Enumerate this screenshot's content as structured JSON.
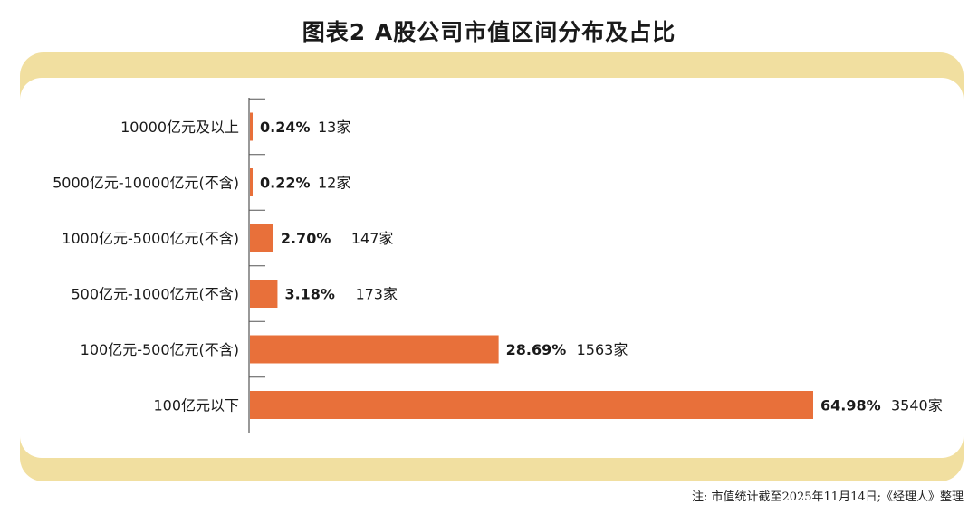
{
  "title": "图表2  A股公司市值区间分布及占比",
  "note": "注: 市值统计截至2025年11月14日;《经理人》整理",
  "colors": {
    "bar": "#e8703a",
    "panel_frame": "#f1dfa0",
    "axis": "#555555",
    "text": "#1a1a1a"
  },
  "chart_data": {
    "type": "bar",
    "orientation": "horizontal",
    "title": "图表2  A股公司市值区间分布及占比",
    "xlabel": "",
    "ylabel": "",
    "grid": false,
    "xlim": [
      0,
      75
    ],
    "categories": [
      "10000亿元及以上",
      "5000亿元-10000亿元(不含)",
      "1000亿元-5000亿元(不含)",
      "500亿元-1000亿元(不含)",
      "100亿元-500亿元(不含)",
      "100亿元以下"
    ],
    "series": [
      {
        "values": [
          0.24,
          0.22,
          2.7,
          3.18,
          28.69,
          64.98
        ]
      }
    ],
    "value_labels": [
      "0.24%",
      "0.22%",
      "2.70%",
      "3.18%",
      "28.69%",
      "64.98%"
    ],
    "count_labels": [
      "13家",
      "12家",
      "147家",
      "173家",
      "1563家",
      "3540家"
    ]
  }
}
